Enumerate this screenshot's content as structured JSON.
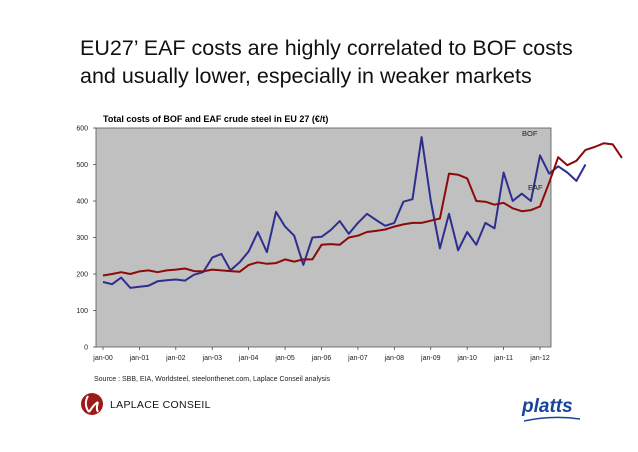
{
  "headline": {
    "line1": "EU27’ EAF costs are highly correlated to BOF costs",
    "line2": "and usually lower, especially in weaker markets"
  },
  "source": "Source : SBB, EIA, Worldsteel, steelonthenet.com, Laplace Conseil analysis",
  "logos": {
    "laplace_text": "LAPLACE CONSEIL",
    "platts_text": "platts"
  },
  "colors": {
    "plot_background": "#c0c0c0",
    "bof": "#8b0a0a",
    "eaf": "#2e2e8f"
  },
  "chart_data": {
    "type": "line",
    "title": "Total costs of BOF and EAF crude steel in EU 27 (€/t)",
    "xlabel": "",
    "ylabel": "",
    "ylim": [
      0,
      600
    ],
    "yticks": [
      0,
      100,
      200,
      300,
      400,
      500,
      600
    ],
    "x_tick_labels": [
      "jan-00",
      "jan-01",
      "jan-02",
      "jan-03",
      "jan-04",
      "jan-05",
      "jan-06",
      "jan-07",
      "jan-08",
      "jan-09",
      "jan-10",
      "jan-11",
      "jan-12"
    ],
    "x_start": "2000-01",
    "x_step": "quarter",
    "grid": false,
    "legend": "inline labels right",
    "series": [
      {
        "name": "BOF",
        "values": [
          196,
          200,
          205,
          200,
          207,
          210,
          205,
          210,
          212,
          215,
          208,
          207,
          212,
          210,
          208,
          206,
          225,
          232,
          228,
          230,
          240,
          234,
          240,
          240,
          280,
          282,
          280,
          300,
          305,
          315,
          318,
          322,
          330,
          336,
          340,
          340,
          346,
          352,
          475,
          472,
          462,
          400,
          398,
          390,
          395,
          380,
          372,
          375,
          385,
          450,
          520,
          498,
          510,
          540,
          548,
          558,
          555,
          518
        ]
      },
      {
        "name": "EAF",
        "values": [
          178,
          172,
          190,
          162,
          165,
          168,
          180,
          183,
          185,
          182,
          198,
          205,
          245,
          255,
          210,
          232,
          262,
          315,
          260,
          370,
          330,
          305,
          225,
          300,
          302,
          320,
          345,
          310,
          340,
          365,
          348,
          332,
          340,
          398,
          405,
          575,
          400,
          270,
          365,
          265,
          315,
          280,
          340,
          325,
          478,
          400,
          420,
          400,
          525,
          475,
          495,
          478,
          455,
          500
        ]
      }
    ]
  }
}
